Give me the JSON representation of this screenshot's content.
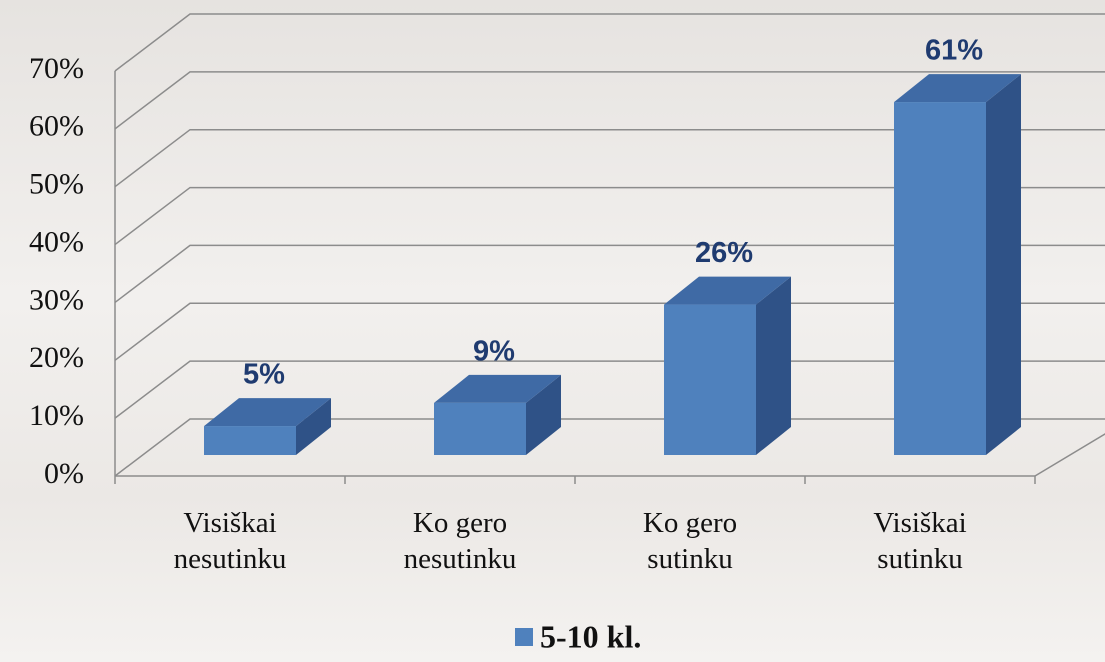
{
  "chart_data": {
    "type": "bar3d",
    "categories": [
      "Visiškai nesutinku",
      "Ko gero nesutinku",
      "Ko gero sutinku",
      "Visiškai sutinku"
    ],
    "series": [
      {
        "name": "5-10 kl.",
        "color": "#4f81bd",
        "values": [
          5,
          9,
          26,
          61
        ],
        "value_labels": [
          "5%",
          "9%",
          "26%",
          "61%"
        ]
      }
    ],
    "ylim": [
      0,
      70
    ],
    "yticks": [
      {
        "value": 0,
        "label": "0%"
      },
      {
        "value": 10,
        "label": "10%"
      },
      {
        "value": 20,
        "label": "20%"
      },
      {
        "value": 30,
        "label": "30%"
      },
      {
        "value": 40,
        "label": "40%"
      },
      {
        "value": 50,
        "label": "50%"
      },
      {
        "value": 60,
        "label": "60%"
      },
      {
        "value": 70,
        "label": "70%"
      }
    ],
    "grid": true,
    "legend": "bottom"
  }
}
